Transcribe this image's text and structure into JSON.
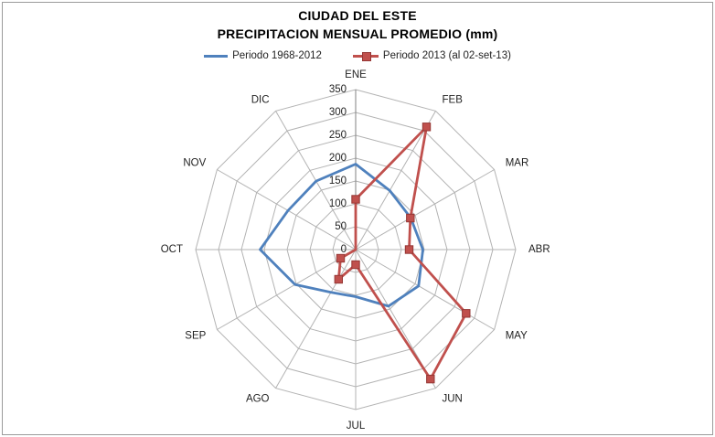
{
  "window": {
    "background": "#ffffff",
    "frame_border_color": "#9a9a9a"
  },
  "chart_data": {
    "type": "radar",
    "title": "CIUDAD DEL ESTE",
    "subtitle": "PRECIPITACION MENSUAL PROMEDIO (mm)",
    "categories": [
      "ENE",
      "FEB",
      "MAR",
      "ABR",
      "MAY",
      "JUN",
      "JUL",
      "AGO",
      "SEP",
      "OCT",
      "NOV",
      "DIC"
    ],
    "radial_axis": {
      "min": 0,
      "max": 350,
      "step": 50,
      "tick_labels": [
        "0",
        "50",
        "100",
        "150",
        "200",
        "250",
        "300",
        "350"
      ]
    },
    "series": [
      {
        "name": "Periodo 1968-2012",
        "color": "#4F81BD",
        "marker": "none",
        "values": [
          187,
          149,
          139,
          147,
          159,
          143,
          103,
          108,
          153,
          209,
          171,
          173
        ]
      },
      {
        "name": "Periodo 2013 (al 02-set-13)",
        "color": "#C0504D",
        "marker": "square",
        "marker_border": "#953735",
        "values": [
          110,
          310,
          138,
          117,
          279,
          327,
          33,
          75,
          38,
          0,
          0,
          0
        ]
      }
    ],
    "grid": "on",
    "grid_color": "#b3b3b3",
    "value_axis_color": "#808080",
    "label_color": "#1f1f1f",
    "legend_position": "top"
  }
}
